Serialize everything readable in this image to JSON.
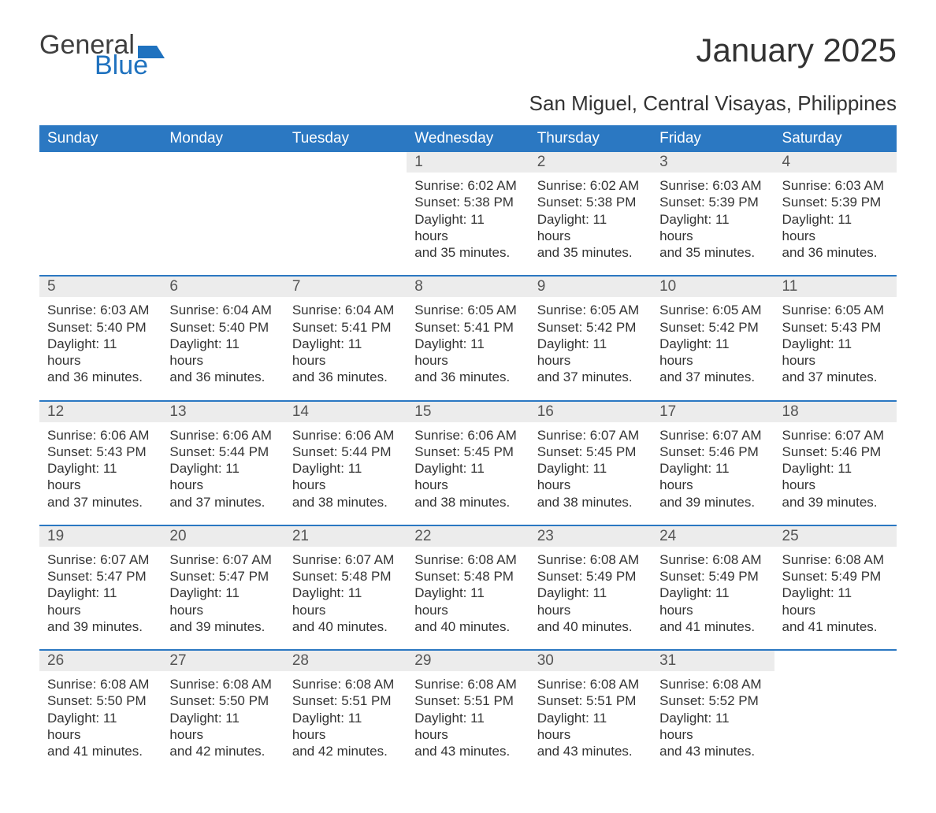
{
  "logo": {
    "word1": "General",
    "word2": "Blue",
    "accent_color": "#1f72bf"
  },
  "header": {
    "title": "January 2025",
    "subtitle": "San Miguel, Central Visayas, Philippines"
  },
  "columns": [
    "Sunday",
    "Monday",
    "Tuesday",
    "Wednesday",
    "Thursday",
    "Friday",
    "Saturday"
  ],
  "colors": {
    "header_bg": "#2b78c2",
    "header_text": "#ffffff",
    "daynum_bg": "#ececec",
    "row_border": "#2b78c2",
    "body_text": "#333333"
  },
  "weeks": [
    [
      null,
      null,
      null,
      {
        "n": "1",
        "sr": "Sunrise: 6:02 AM",
        "ss": "Sunset: 5:38 PM",
        "d1": "Daylight: 11 hours",
        "d2": "and 35 minutes."
      },
      {
        "n": "2",
        "sr": "Sunrise: 6:02 AM",
        "ss": "Sunset: 5:38 PM",
        "d1": "Daylight: 11 hours",
        "d2": "and 35 minutes."
      },
      {
        "n": "3",
        "sr": "Sunrise: 6:03 AM",
        "ss": "Sunset: 5:39 PM",
        "d1": "Daylight: 11 hours",
        "d2": "and 35 minutes."
      },
      {
        "n": "4",
        "sr": "Sunrise: 6:03 AM",
        "ss": "Sunset: 5:39 PM",
        "d1": "Daylight: 11 hours",
        "d2": "and 36 minutes."
      }
    ],
    [
      {
        "n": "5",
        "sr": "Sunrise: 6:03 AM",
        "ss": "Sunset: 5:40 PM",
        "d1": "Daylight: 11 hours",
        "d2": "and 36 minutes."
      },
      {
        "n": "6",
        "sr": "Sunrise: 6:04 AM",
        "ss": "Sunset: 5:40 PM",
        "d1": "Daylight: 11 hours",
        "d2": "and 36 minutes."
      },
      {
        "n": "7",
        "sr": "Sunrise: 6:04 AM",
        "ss": "Sunset: 5:41 PM",
        "d1": "Daylight: 11 hours",
        "d2": "and 36 minutes."
      },
      {
        "n": "8",
        "sr": "Sunrise: 6:05 AM",
        "ss": "Sunset: 5:41 PM",
        "d1": "Daylight: 11 hours",
        "d2": "and 36 minutes."
      },
      {
        "n": "9",
        "sr": "Sunrise: 6:05 AM",
        "ss": "Sunset: 5:42 PM",
        "d1": "Daylight: 11 hours",
        "d2": "and 37 minutes."
      },
      {
        "n": "10",
        "sr": "Sunrise: 6:05 AM",
        "ss": "Sunset: 5:42 PM",
        "d1": "Daylight: 11 hours",
        "d2": "and 37 minutes."
      },
      {
        "n": "11",
        "sr": "Sunrise: 6:05 AM",
        "ss": "Sunset: 5:43 PM",
        "d1": "Daylight: 11 hours",
        "d2": "and 37 minutes."
      }
    ],
    [
      {
        "n": "12",
        "sr": "Sunrise: 6:06 AM",
        "ss": "Sunset: 5:43 PM",
        "d1": "Daylight: 11 hours",
        "d2": "and 37 minutes."
      },
      {
        "n": "13",
        "sr": "Sunrise: 6:06 AM",
        "ss": "Sunset: 5:44 PM",
        "d1": "Daylight: 11 hours",
        "d2": "and 37 minutes."
      },
      {
        "n": "14",
        "sr": "Sunrise: 6:06 AM",
        "ss": "Sunset: 5:44 PM",
        "d1": "Daylight: 11 hours",
        "d2": "and 38 minutes."
      },
      {
        "n": "15",
        "sr": "Sunrise: 6:06 AM",
        "ss": "Sunset: 5:45 PM",
        "d1": "Daylight: 11 hours",
        "d2": "and 38 minutes."
      },
      {
        "n": "16",
        "sr": "Sunrise: 6:07 AM",
        "ss": "Sunset: 5:45 PM",
        "d1": "Daylight: 11 hours",
        "d2": "and 38 minutes."
      },
      {
        "n": "17",
        "sr": "Sunrise: 6:07 AM",
        "ss": "Sunset: 5:46 PM",
        "d1": "Daylight: 11 hours",
        "d2": "and 39 minutes."
      },
      {
        "n": "18",
        "sr": "Sunrise: 6:07 AM",
        "ss": "Sunset: 5:46 PM",
        "d1": "Daylight: 11 hours",
        "d2": "and 39 minutes."
      }
    ],
    [
      {
        "n": "19",
        "sr": "Sunrise: 6:07 AM",
        "ss": "Sunset: 5:47 PM",
        "d1": "Daylight: 11 hours",
        "d2": "and 39 minutes."
      },
      {
        "n": "20",
        "sr": "Sunrise: 6:07 AM",
        "ss": "Sunset: 5:47 PM",
        "d1": "Daylight: 11 hours",
        "d2": "and 39 minutes."
      },
      {
        "n": "21",
        "sr": "Sunrise: 6:07 AM",
        "ss": "Sunset: 5:48 PM",
        "d1": "Daylight: 11 hours",
        "d2": "and 40 minutes."
      },
      {
        "n": "22",
        "sr": "Sunrise: 6:08 AM",
        "ss": "Sunset: 5:48 PM",
        "d1": "Daylight: 11 hours",
        "d2": "and 40 minutes."
      },
      {
        "n": "23",
        "sr": "Sunrise: 6:08 AM",
        "ss": "Sunset: 5:49 PM",
        "d1": "Daylight: 11 hours",
        "d2": "and 40 minutes."
      },
      {
        "n": "24",
        "sr": "Sunrise: 6:08 AM",
        "ss": "Sunset: 5:49 PM",
        "d1": "Daylight: 11 hours",
        "d2": "and 41 minutes."
      },
      {
        "n": "25",
        "sr": "Sunrise: 6:08 AM",
        "ss": "Sunset: 5:49 PM",
        "d1": "Daylight: 11 hours",
        "d2": "and 41 minutes."
      }
    ],
    [
      {
        "n": "26",
        "sr": "Sunrise: 6:08 AM",
        "ss": "Sunset: 5:50 PM",
        "d1": "Daylight: 11 hours",
        "d2": "and 41 minutes."
      },
      {
        "n": "27",
        "sr": "Sunrise: 6:08 AM",
        "ss": "Sunset: 5:50 PM",
        "d1": "Daylight: 11 hours",
        "d2": "and 42 minutes."
      },
      {
        "n": "28",
        "sr": "Sunrise: 6:08 AM",
        "ss": "Sunset: 5:51 PM",
        "d1": "Daylight: 11 hours",
        "d2": "and 42 minutes."
      },
      {
        "n": "29",
        "sr": "Sunrise: 6:08 AM",
        "ss": "Sunset: 5:51 PM",
        "d1": "Daylight: 11 hours",
        "d2": "and 43 minutes."
      },
      {
        "n": "30",
        "sr": "Sunrise: 6:08 AM",
        "ss": "Sunset: 5:51 PM",
        "d1": "Daylight: 11 hours",
        "d2": "and 43 minutes."
      },
      {
        "n": "31",
        "sr": "Sunrise: 6:08 AM",
        "ss": "Sunset: 5:52 PM",
        "d1": "Daylight: 11 hours",
        "d2": "and 43 minutes."
      },
      null
    ]
  ]
}
